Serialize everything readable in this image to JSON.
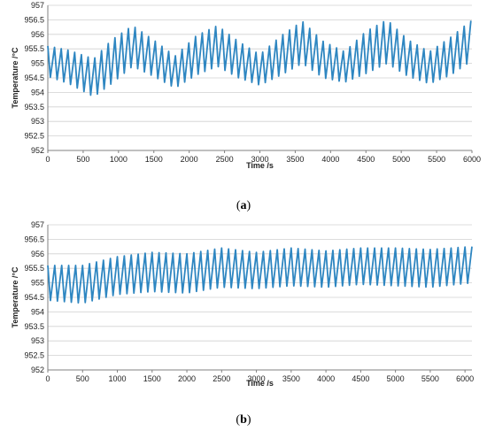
{
  "colors": {
    "series": "#2E86C1",
    "grid": "#D0D0D0",
    "axis": "#808080"
  },
  "chart_data": [
    {
      "type": "line",
      "caption": "a",
      "xlabel": "Time /s",
      "ylabel": "Temperature /°C",
      "xlim": [
        0,
        6000
      ],
      "ylim": [
        952,
        957
      ],
      "x_ticks": [
        0,
        500,
        1000,
        1500,
        2000,
        2500,
        3000,
        3500,
        4000,
        4500,
        5000,
        5500,
        6000
      ],
      "y_ticks": [
        "952",
        "952.5",
        "953",
        "953.5",
        "954",
        "954.5",
        "955",
        "955.5",
        "956",
        "956.5",
        "957"
      ],
      "grid": "horizontal",
      "oscillation_period_s": 95,
      "envelope_s": [
        0,
        300,
        650,
        900,
        1200,
        1500,
        1800,
        2100,
        2400,
        2700,
        3000,
        3300,
        3600,
        3900,
        4200,
        4500,
        4800,
        5100,
        5400,
        5700,
        6000
      ],
      "envelope_max": [
        955.6,
        955.45,
        955.15,
        955.8,
        956.3,
        955.8,
        955.25,
        955.95,
        956.3,
        955.75,
        955.3,
        955.95,
        956.45,
        955.75,
        955.4,
        956.1,
        956.5,
        955.8,
        955.4,
        955.9,
        956.5
      ],
      "envelope_min": [
        954.55,
        954.3,
        953.85,
        954.3,
        954.9,
        954.55,
        954.15,
        954.6,
        954.9,
        954.5,
        954.25,
        954.6,
        955.0,
        954.5,
        954.35,
        954.65,
        955.0,
        954.55,
        954.3,
        954.6,
        955.1
      ]
    },
    {
      "type": "line",
      "caption": "b",
      "xlabel": "Time /s",
      "ylabel": "Temperature /°C",
      "xlim": [
        0,
        6100
      ],
      "ylim": [
        952,
        957
      ],
      "x_ticks": [
        0,
        500,
        1000,
        1500,
        2000,
        2500,
        3000,
        3500,
        4000,
        4500,
        5000,
        5500,
        6000
      ],
      "y_ticks": [
        "952",
        "952.5",
        "953",
        "953.5",
        "954",
        "954.5",
        "955",
        "955.5",
        "956",
        "956.5",
        "957"
      ],
      "grid": "horizontal",
      "oscillation_period_s": 100,
      "envelope_s": [
        0,
        500,
        1000,
        1500,
        2000,
        2500,
        3000,
        3500,
        4000,
        4500,
        5000,
        5500,
        6100
      ],
      "envelope_max": [
        955.6,
        955.6,
        955.9,
        956.05,
        956.0,
        956.2,
        956.05,
        956.2,
        956.1,
        956.2,
        956.2,
        956.15,
        956.25
      ],
      "envelope_min": [
        954.4,
        954.3,
        954.6,
        954.7,
        954.65,
        954.85,
        954.8,
        954.9,
        954.85,
        954.95,
        954.9,
        954.85,
        955.0
      ]
    }
  ]
}
